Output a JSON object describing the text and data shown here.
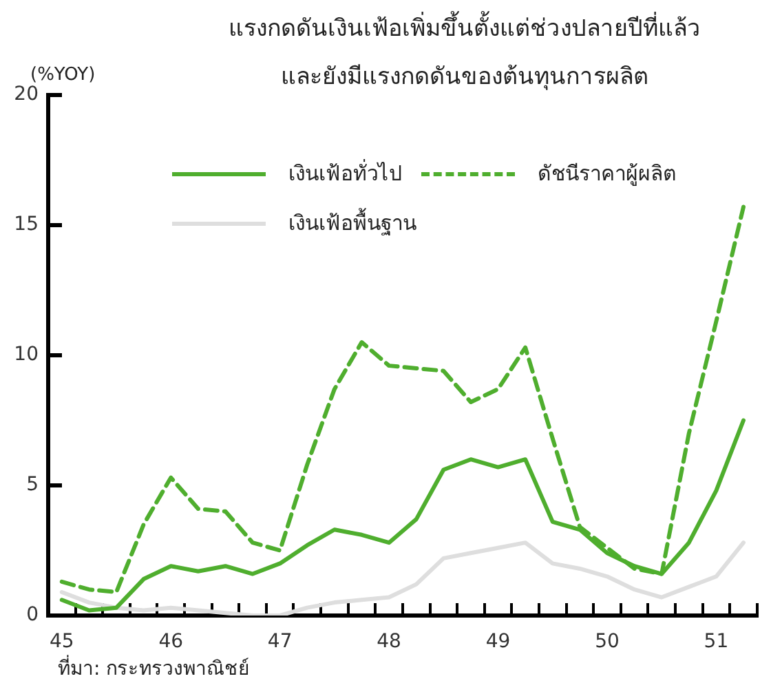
{
  "chart_data": {
    "type": "line",
    "title": "แรงกดดันเงินเฟ้อเพิ่มขึ้นตั้งแต่ช่วงปลายปีที่แล้ว\nและยังมีแรงกดดันของต้นทุนการผลิต",
    "ylabel": "(%YOY)",
    "annotations": [
      "ที่มา: กระทรวงพาณิชย์"
    ],
    "categories": [
      "45",
      null,
      null,
      null,
      "46",
      null,
      null,
      null,
      "47",
      null,
      null,
      null,
      "48",
      null,
      null,
      null,
      "49",
      null,
      null,
      null,
      "50",
      null,
      null,
      null,
      "51",
      null
    ],
    "series": [
      {
        "name": "เงินเฟ้อทั่วไป",
        "color": "#4fae2e",
        "line_style": "solid",
        "values": [
          0.6,
          0.2,
          0.3,
          1.4,
          1.9,
          1.7,
          1.9,
          1.6,
          2.0,
          2.7,
          3.3,
          3.1,
          2.8,
          3.7,
          5.6,
          6.0,
          5.7,
          6.0,
          3.6,
          3.3,
          2.4,
          1.9,
          1.6,
          2.8,
          4.8,
          7.5
        ]
      },
      {
        "name": "ดัชนีราคาผู้ผลิต",
        "color": "#4fae2e",
        "line_style": "dashed",
        "values": [
          1.3,
          1.0,
          0.9,
          3.5,
          5.3,
          4.1,
          4.0,
          2.8,
          2.5,
          5.8,
          8.7,
          10.5,
          9.6,
          9.5,
          9.4,
          8.2,
          8.7,
          10.3,
          6.8,
          3.4,
          2.6,
          1.8,
          1.6,
          7.0,
          11.3,
          15.7
        ]
      },
      {
        "name": "เงินเฟ้อพื้นฐาน",
        "color": "#dedede",
        "line_style": "solid",
        "values": [
          0.9,
          0.5,
          0.3,
          0.2,
          0.3,
          0.2,
          0.1,
          0.0,
          0.0,
          0.3,
          0.5,
          0.6,
          0.7,
          1.2,
          2.2,
          2.4,
          2.6,
          2.8,
          2.0,
          1.8,
          1.5,
          1.0,
          0.7,
          1.1,
          1.5,
          2.8
        ]
      }
    ],
    "ylim": [
      0,
      20
    ],
    "yticks": [
      0,
      5,
      10,
      15,
      20
    ],
    "legend": "top"
  }
}
